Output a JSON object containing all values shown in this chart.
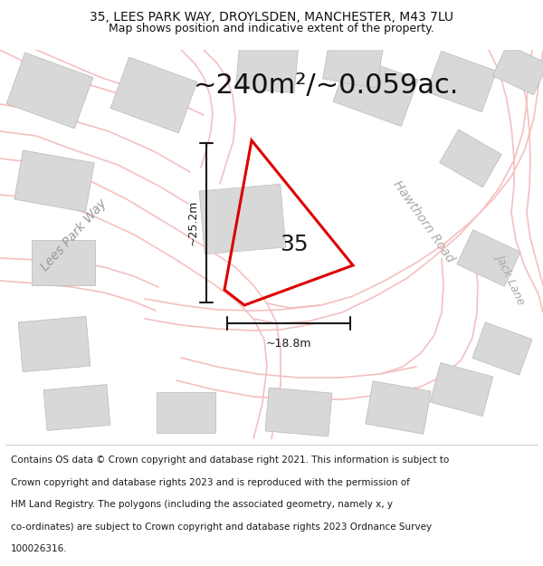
{
  "title_line1": "35, LEES PARK WAY, DROYLSDEN, MANCHESTER, M43 7LU",
  "title_line2": "Map shows position and indicative extent of the property.",
  "area_text": "~240m²/~0.059ac.",
  "property_number": "35",
  "dim_vertical": "~25.2m",
  "dim_horizontal": "~18.8m",
  "road_label_left": "Lees Park Way",
  "road_label_right": "Hawthorn Road",
  "road_label_far_right": "Jack Lane",
  "footer_lines": [
    "Contains OS data © Crown copyright and database right 2021. This information is subject to",
    "Crown copyright and database rights 2023 and is reproduced with the permission of",
    "HM Land Registry. The polygons (including the associated geometry, namely x, y",
    "co-ordinates) are subject to Crown copyright and database rights 2023 Ordnance Survey",
    "100026316."
  ],
  "bg_color": "#f2f2f2",
  "plot_color": "#dd0000",
  "building_fill": "#d8d8d8",
  "building_edge": "#b8b8b8",
  "road_color": "#f5c0c0",
  "road_lw": 1.2,
  "title_fontsize": 10,
  "subtitle_fontsize": 9,
  "area_fontsize": 22,
  "num_fontsize": 18,
  "dim_fontsize": 9,
  "road_label_fontsize": 10,
  "footer_fontsize": 7.5
}
